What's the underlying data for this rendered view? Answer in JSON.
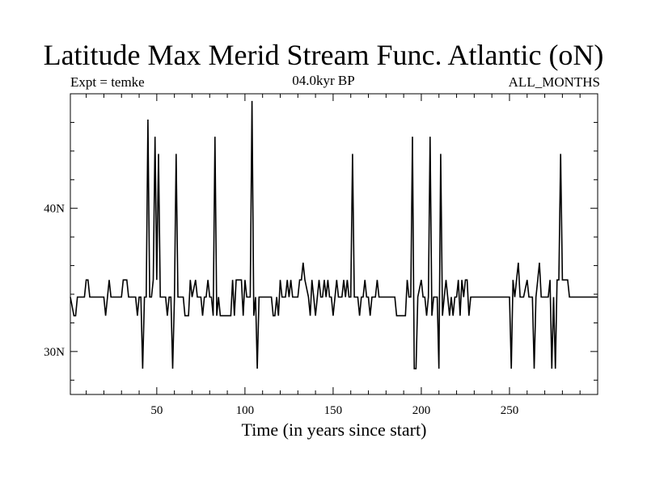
{
  "chart_data": {
    "type": "line",
    "title": "Latitude Max Merid Stream Func. Atlantic (oN)",
    "subtitle_left": "Expt = temke",
    "subtitle_center": "04.0kyr BP",
    "subtitle_right": "ALL_MONTHS",
    "xlabel": "Time (in years since start)",
    "ylabel": "",
    "xlim": [
      1,
      300
    ],
    "ylim": [
      27,
      48
    ],
    "x_ticks": [
      50,
      100,
      150,
      200,
      250
    ],
    "x_tick_labels": [
      "50",
      "100",
      "150",
      "200",
      "250"
    ],
    "y_ticks": [
      30,
      40
    ],
    "y_tick_labels": [
      "30N",
      "40N"
    ],
    "series": [
      {
        "name": "Latitude Max Merid Stream Func",
        "color": "#000000",
        "points": [
          [
            1,
            33.8
          ],
          [
            3,
            32.5
          ],
          [
            4,
            32.5
          ],
          [
            5,
            33.8
          ],
          [
            9,
            33.8
          ],
          [
            10,
            35
          ],
          [
            11,
            35
          ],
          [
            12,
            33.8
          ],
          [
            20,
            33.8
          ],
          [
            21,
            32.5
          ],
          [
            23,
            35
          ],
          [
            24,
            33.8
          ],
          [
            30,
            33.8
          ],
          [
            31,
            35
          ],
          [
            33,
            35
          ],
          [
            34,
            33.8
          ],
          [
            38,
            33.8
          ],
          [
            39,
            32.5
          ],
          [
            40,
            33.8
          ],
          [
            41,
            33.8
          ],
          [
            42,
            28.8
          ],
          [
            43,
            33.8
          ],
          [
            44,
            33.8
          ],
          [
            45,
            46.2
          ],
          [
            46,
            33.8
          ],
          [
            47,
            33.8
          ],
          [
            48,
            35
          ],
          [
            49,
            45
          ],
          [
            50,
            35
          ],
          [
            51,
            43.8
          ],
          [
            52,
            33.8
          ],
          [
            55,
            33.8
          ],
          [
            56,
            32.5
          ],
          [
            57,
            33.8
          ],
          [
            58,
            33.8
          ],
          [
            59,
            28.8
          ],
          [
            60,
            33.8
          ],
          [
            61,
            43.8
          ],
          [
            62,
            33.8
          ],
          [
            65,
            33.8
          ],
          [
            66,
            32.5
          ],
          [
            68,
            32.5
          ],
          [
            69,
            35
          ],
          [
            70,
            33.8
          ],
          [
            72,
            35
          ],
          [
            73,
            33.8
          ],
          [
            75,
            33.8
          ],
          [
            76,
            32.5
          ],
          [
            77,
            33.8
          ],
          [
            78,
            33.8
          ],
          [
            79,
            35
          ],
          [
            80,
            33.8
          ],
          [
            81,
            33.8
          ],
          [
            82,
            32.5
          ],
          [
            83,
            45
          ],
          [
            84,
            32.5
          ],
          [
            85,
            33.8
          ],
          [
            86,
            32.5
          ],
          [
            92,
            32.5
          ],
          [
            93,
            35
          ],
          [
            94,
            32.5
          ],
          [
            95,
            35
          ],
          [
            98,
            35
          ],
          [
            99,
            32.5
          ],
          [
            100,
            35
          ],
          [
            101,
            33.8
          ],
          [
            103,
            33.8
          ],
          [
            104,
            47.5
          ],
          [
            105,
            32.5
          ],
          [
            106,
            33.8
          ],
          [
            107,
            28.8
          ],
          [
            108,
            33.8
          ],
          [
            115,
            33.8
          ],
          [
            116,
            32.5
          ],
          [
            117,
            32.5
          ],
          [
            118,
            33.8
          ],
          [
            119,
            32.5
          ],
          [
            120,
            35
          ],
          [
            121,
            33.8
          ],
          [
            123,
            33.8
          ],
          [
            124,
            35
          ],
          [
            125,
            33.8
          ],
          [
            126,
            35
          ],
          [
            127,
            33.8
          ],
          [
            130,
            33.8
          ],
          [
            131,
            35
          ],
          [
            132,
            35
          ],
          [
            133,
            36.2
          ],
          [
            134,
            35
          ],
          [
            136,
            33.8
          ],
          [
            137,
            32.5
          ],
          [
            138,
            35
          ],
          [
            139,
            33.8
          ],
          [
            140,
            32.5
          ],
          [
            142,
            35
          ],
          [
            143,
            33.8
          ],
          [
            144,
            33.8
          ],
          [
            145,
            35
          ],
          [
            146,
            33.8
          ],
          [
            147,
            35
          ],
          [
            148,
            33.8
          ],
          [
            149,
            33.8
          ],
          [
            150,
            32.5
          ],
          [
            152,
            35
          ],
          [
            153,
            33.8
          ],
          [
            155,
            33.8
          ],
          [
            156,
            35
          ],
          [
            157,
            33.8
          ],
          [
            158,
            35
          ],
          [
            159,
            33.8
          ],
          [
            160,
            33.8
          ],
          [
            161,
            43.8
          ],
          [
            162,
            33.8
          ],
          [
            164,
            33.8
          ],
          [
            165,
            32.5
          ],
          [
            166,
            33.8
          ],
          [
            167,
            33.8
          ],
          [
            168,
            35
          ],
          [
            169,
            33.8
          ],
          [
            170,
            33.8
          ],
          [
            171,
            32.5
          ],
          [
            172,
            33.8
          ],
          [
            174,
            33.8
          ],
          [
            175,
            35
          ],
          [
            176,
            33.8
          ],
          [
            185,
            33.8
          ],
          [
            186,
            32.5
          ],
          [
            191,
            32.5
          ],
          [
            192,
            35
          ],
          [
            193,
            33.8
          ],
          [
            194,
            33.8
          ],
          [
            195,
            45
          ],
          [
            196,
            28.8
          ],
          [
            197,
            28.8
          ],
          [
            198,
            33.8
          ],
          [
            200,
            35
          ],
          [
            201,
            33.8
          ],
          [
            202,
            33.8
          ],
          [
            203,
            32.5
          ],
          [
            204,
            33.8
          ],
          [
            205,
            45
          ],
          [
            206,
            32.5
          ],
          [
            207,
            33.8
          ],
          [
            209,
            33.8
          ],
          [
            210,
            28.8
          ],
          [
            211,
            43.8
          ],
          [
            212,
            32.5
          ],
          [
            213,
            33.8
          ],
          [
            214,
            35
          ],
          [
            215,
            33.8
          ],
          [
            216,
            32.5
          ],
          [
            217,
            33.8
          ],
          [
            218,
            32.5
          ],
          [
            219,
            33.8
          ],
          [
            220,
            33.8
          ],
          [
            221,
            35
          ],
          [
            222,
            32.5
          ],
          [
            223,
            35
          ],
          [
            224,
            33.8
          ],
          [
            225,
            35
          ],
          [
            226,
            35
          ],
          [
            227,
            32.5
          ],
          [
            228,
            33.8
          ],
          [
            250,
            33.8
          ],
          [
            251,
            28.8
          ],
          [
            252,
            35
          ],
          [
            253,
            33.8
          ],
          [
            254,
            35
          ],
          [
            255,
            36.2
          ],
          [
            256,
            33.8
          ],
          [
            258,
            33.8
          ],
          [
            260,
            35
          ],
          [
            261,
            33.8
          ],
          [
            263,
            33.8
          ],
          [
            264,
            28.8
          ],
          [
            265,
            33.8
          ],
          [
            266,
            35
          ],
          [
            267,
            36.2
          ],
          [
            268,
            33.8
          ],
          [
            272,
            33.8
          ],
          [
            273,
            35
          ],
          [
            274,
            28.8
          ],
          [
            275,
            33.8
          ],
          [
            276,
            28.8
          ],
          [
            277,
            35
          ],
          [
            278,
            35
          ],
          [
            279,
            43.8
          ],
          [
            280,
            35
          ],
          [
            283,
            35
          ],
          [
            284,
            33.8
          ],
          [
            300,
            33.8
          ]
        ]
      }
    ]
  }
}
